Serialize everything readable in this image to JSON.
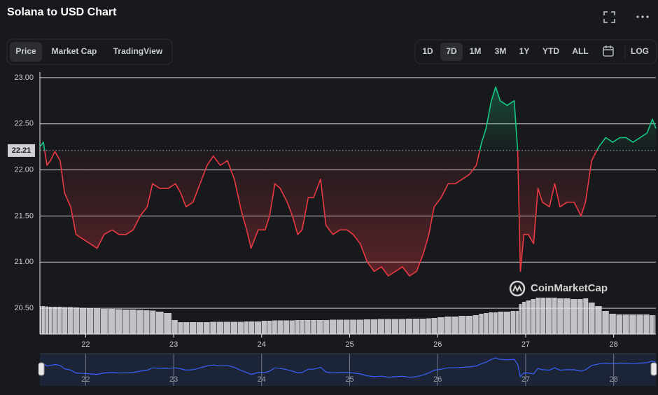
{
  "header": {
    "tabs": [
      "Price",
      "Market Cap",
      "TradingView"
    ],
    "ranges": [
      "1D",
      "7D",
      "1M",
      "3M",
      "1Y",
      "YTD",
      "ALL"
    ],
    "log": "LOG"
  },
  "watermark": "CoinMarketCap",
  "chart_data": {
    "type": "line",
    "title": "Solana to USD Chart",
    "x": [
      21.48,
      21.52,
      21.56,
      21.6,
      21.65,
      21.71,
      21.76,
      21.83,
      21.89,
      21.97,
      22.05,
      22.13,
      22.21,
      22.3,
      22.38,
      22.46,
      22.54,
      22.62,
      22.7,
      22.76,
      22.84,
      22.94,
      23.02,
      23.08,
      23.14,
      23.22,
      23.3,
      23.38,
      23.45,
      23.53,
      23.61,
      23.69,
      23.77,
      23.83,
      23.88,
      23.96,
      24.04,
      24.09,
      24.15,
      24.21,
      24.29,
      24.35,
      24.41,
      24.46,
      24.53,
      24.59,
      24.67,
      24.73,
      24.81,
      24.89,
      24.97,
      25.04,
      25.12,
      25.2,
      25.28,
      25.36,
      25.44,
      25.52,
      25.6,
      25.68,
      25.76,
      25.84,
      25.9,
      25.96,
      26.04,
      26.12,
      26.2,
      26.28,
      26.36,
      26.44,
      26.5,
      26.55,
      26.61,
      26.66,
      26.71,
      26.79,
      26.87,
      26.91,
      26.94,
      26.98,
      27.03,
      27.09,
      27.14,
      27.19,
      27.27,
      27.33,
      27.39,
      27.47,
      27.55,
      27.63,
      27.68,
      27.75,
      27.83,
      27.91,
      27.99,
      28.07,
      28.14,
      28.22,
      28.3,
      28.38,
      28.44,
      28.48
    ],
    "values": [
      22.25,
      22.3,
      22.05,
      22.1,
      22.2,
      22.1,
      21.75,
      21.6,
      21.3,
      21.25,
      21.2,
      21.15,
      21.3,
      21.35,
      21.3,
      21.3,
      21.35,
      21.5,
      21.6,
      21.85,
      21.8,
      21.8,
      21.85,
      21.75,
      21.6,
      21.65,
      21.85,
      22.05,
      22.15,
      22.05,
      22.1,
      21.9,
      21.55,
      21.35,
      21.15,
      21.35,
      21.35,
      21.5,
      21.85,
      21.8,
      21.65,
      21.5,
      21.3,
      21.35,
      21.7,
      21.7,
      21.9,
      21.4,
      21.3,
      21.35,
      21.35,
      21.3,
      21.2,
      21.0,
      20.9,
      20.95,
      20.85,
      20.9,
      20.95,
      20.85,
      20.9,
      21.1,
      21.3,
      21.6,
      21.7,
      21.85,
      21.85,
      21.9,
      21.95,
      22.05,
      22.3,
      22.45,
      22.75,
      22.9,
      22.75,
      22.7,
      22.75,
      22.2,
      20.9,
      21.3,
      21.3,
      21.2,
      21.8,
      21.65,
      21.6,
      21.85,
      21.6,
      21.65,
      21.65,
      21.5,
      21.65,
      22.1,
      22.25,
      22.35,
      22.3,
      22.35,
      22.35,
      22.3,
      22.35,
      22.4,
      22.55,
      22.45
    ],
    "volume": [
      80,
      80,
      79,
      78,
      78,
      78,
      77,
      77,
      76,
      75,
      74,
      73,
      72,
      72,
      71,
      70,
      70,
      69,
      68,
      67,
      64,
      60,
      40,
      34,
      34,
      34,
      34,
      34,
      35,
      35,
      35,
      35,
      35,
      36,
      36,
      36,
      38,
      38,
      39,
      39,
      39,
      39,
      40,
      40,
      40,
      40,
      40,
      40,
      41,
      41,
      41,
      41,
      41,
      42,
      42,
      43,
      43,
      43,
      43,
      44,
      44,
      44,
      45,
      46,
      48,
      50,
      50,
      52,
      52,
      54,
      58,
      60,
      62,
      62,
      64,
      64,
      66,
      66,
      86,
      92,
      96,
      100,
      104,
      104,
      104,
      104,
      102,
      102,
      100,
      100,
      102,
      90,
      80,
      66,
      58,
      56,
      56,
      56,
      56,
      56,
      54,
      54
    ],
    "current_price": 22.21,
    "xlim": [
      21.48,
      28.48
    ],
    "xticks": [
      22,
      23,
      24,
      25,
      26,
      27,
      28
    ],
    "ylim": [
      20.22,
      23.06
    ],
    "yticks": [
      {
        "value": 20.5,
        "label": "20.50"
      },
      {
        "value": 21,
        "label": "21.00"
      },
      {
        "value": 21.5,
        "label": "21.50"
      },
      {
        "value": 22,
        "label": "22.00"
      },
      {
        "value": 22.5,
        "label": "22.50"
      },
      {
        "value": 23,
        "label": "23.00"
      }
    ],
    "y2lim": [
      0,
      120
    ],
    "grid": true,
    "up_color": "#16c784",
    "down_color": "#ea3943",
    "volume_color": "#d4d6db",
    "navigator_color": "#3861fb"
  }
}
